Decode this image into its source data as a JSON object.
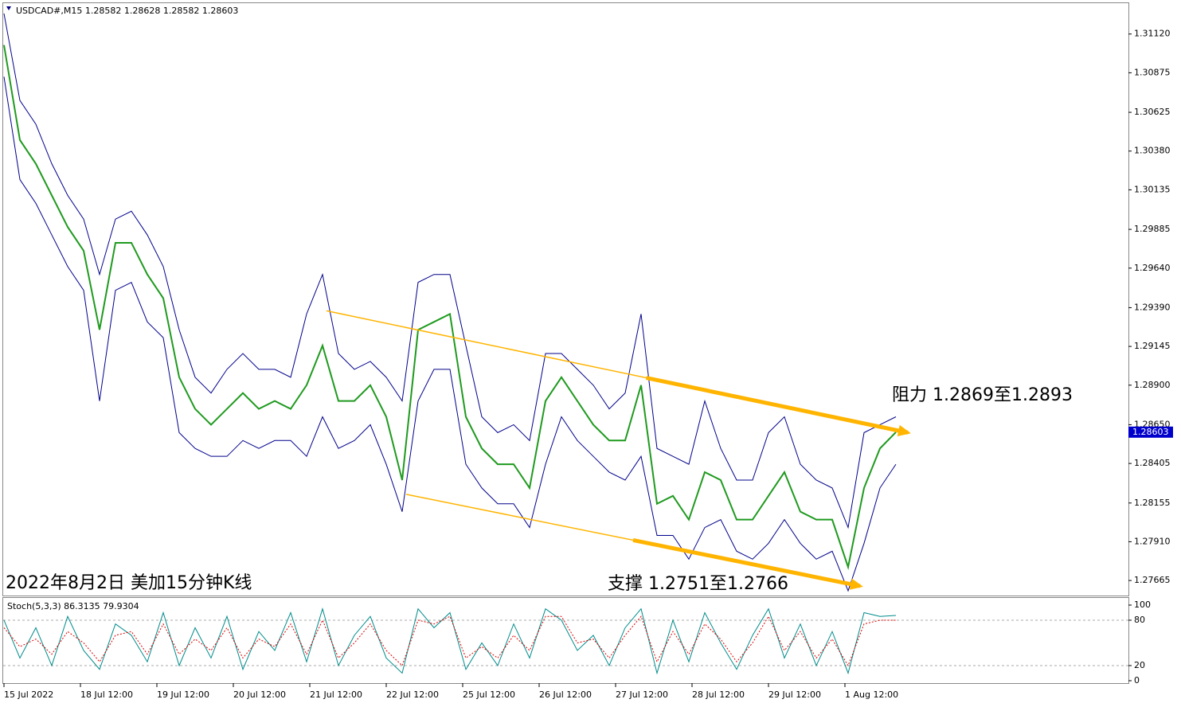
{
  "chart_data": [
    {
      "type": "line",
      "title": "USDCAD#,M15  1.28582 1.28628 1.28582 1.28603",
      "annotations": [
        "阻力 1.2869至1.2893",
        "支撑 1.2751至1.2766",
        "2022年8月2日 美加15分钟K线"
      ],
      "x_labels": [
        "15 Jul 2022",
        "18 Jul 12:00",
        "19 Jul 12:00",
        "20 Jul 12:00",
        "21 Jul 12:00",
        "22 Jul 12:00",
        "25 Jul 12:00",
        "26 Jul 12:00",
        "27 Jul 12:00",
        "28 Jul 12:00",
        "29 Jul 12:00",
        "1 Aug 12:00"
      ],
      "ylim": [
        1.2757,
        1.3132
      ],
      "yticks": [
        {
          "value": 1.3112,
          "label": "1.31120"
        },
        {
          "value": 1.30875,
          "label": "1.30875"
        },
        {
          "value": 1.30625,
          "label": "1.30625"
        },
        {
          "value": 1.3038,
          "label": "1.30380"
        },
        {
          "value": 1.30135,
          "label": "1.30135"
        },
        {
          "value": 1.29885,
          "label": "1.29885"
        },
        {
          "value": 1.2964,
          "label": "1.29640"
        },
        {
          "value": 1.2939,
          "label": "1.29390"
        },
        {
          "value": 1.29145,
          "label": "1.29145"
        },
        {
          "value": 1.289,
          "label": "1.28900"
        },
        {
          "value": 1.2865,
          "label": "1.28650"
        },
        {
          "value": 1.28405,
          "label": "1.28405"
        },
        {
          "value": 1.28155,
          "label": "1.28155"
        },
        {
          "value": 1.2791,
          "label": "1.27910"
        },
        {
          "value": 1.27665,
          "label": "1.27665"
        }
      ],
      "series": [
        {
          "color": "#1f9a1f",
          "values": [
            1.3105,
            1.3045,
            1.303,
            1.301,
            1.299,
            1.2975,
            1.2925,
            1.298,
            1.298,
            1.296,
            1.2945,
            1.2895,
            1.2875,
            1.2865,
            1.2875,
            1.2885,
            1.2875,
            1.288,
            1.2875,
            1.289,
            1.2915,
            1.288,
            1.288,
            1.289,
            1.287,
            1.283,
            1.2925,
            1.293,
            1.2935,
            1.287,
            1.285,
            1.284,
            1.284,
            1.2825,
            1.288,
            1.2895,
            1.288,
            1.2865,
            1.2855,
            1.2855,
            1.289,
            1.2815,
            1.282,
            1.2805,
            1.2835,
            1.283,
            1.2805,
            1.2805,
            1.282,
            1.2835,
            1.281,
            1.2805,
            1.2805,
            1.2775,
            1.2825,
            1.285,
            1.28603
          ]
        },
        {
          "color": "#00008b",
          "values": [
            1.3125,
            1.307,
            1.3055,
            1.303,
            1.301,
            1.2995,
            1.296,
            1.2995,
            1.3,
            1.2985,
            1.2965,
            1.2925,
            1.2895,
            1.2885,
            1.29,
            1.291,
            1.29,
            1.29,
            1.2895,
            1.2935,
            1.296,
            1.291,
            1.29,
            1.2905,
            1.2895,
            1.288,
            1.2955,
            1.296,
            1.296,
            1.2915,
            1.287,
            1.286,
            1.2865,
            1.2855,
            1.291,
            1.291,
            1.29,
            1.289,
            1.2875,
            1.2885,
            1.2935,
            1.285,
            1.2845,
            1.284,
            1.288,
            1.285,
            1.283,
            1.283,
            1.286,
            1.287,
            1.284,
            1.283,
            1.2825,
            1.28,
            1.286,
            1.2865,
            1.287
          ]
        },
        {
          "color": "#00008b",
          "values": [
            1.3085,
            1.302,
            1.3005,
            1.2985,
            1.2965,
            1.295,
            1.288,
            1.295,
            1.2955,
            1.293,
            1.292,
            1.286,
            1.285,
            1.2845,
            1.2845,
            1.2855,
            1.285,
            1.2855,
            1.2855,
            1.2845,
            1.287,
            1.285,
            1.2855,
            1.2865,
            1.284,
            1.281,
            1.288,
            1.29,
            1.29,
            1.284,
            1.2825,
            1.2815,
            1.2815,
            1.28,
            1.284,
            1.287,
            1.2855,
            1.2845,
            1.2835,
            1.283,
            1.2845,
            1.2795,
            1.2795,
            1.278,
            1.28,
            1.2805,
            1.2785,
            1.278,
            1.279,
            1.2805,
            1.279,
            1.278,
            1.2785,
            1.276,
            1.279,
            1.2825,
            1.284
          ]
        }
      ],
      "trendlines": [
        {
          "color": "#ffb400",
          "start": [
            20.25,
            1.2937
          ],
          "end": [
            56.75,
            1.286
          ]
        },
        {
          "color": "#ffb400",
          "start": [
            25.25,
            1.2821
          ],
          "end": [
            53.75,
            1.2763
          ]
        }
      ]
    },
    {
      "type": "line",
      "title": "Stoch(5,3,3) 86.3135 79.9304",
      "ylim": [
        -3.2,
        108.4
      ],
      "yticks": [
        100,
        80,
        20,
        0
      ],
      "levels": [
        80,
        20
      ],
      "series": [
        {
          "color": "#008b8b",
          "values": [
            80,
            30,
            70,
            20,
            85,
            40,
            15,
            75,
            60,
            25,
            90,
            20,
            70,
            30,
            85,
            15,
            65,
            40,
            90,
            25,
            95,
            20,
            60,
            85,
            30,
            10,
            95,
            70,
            90,
            15,
            50,
            20,
            75,
            30,
            95,
            80,
            40,
            60,
            20,
            70,
            95,
            10,
            80,
            25,
            90,
            50,
            15,
            60,
            95,
            30,
            75,
            20,
            65,
            10,
            90,
            85,
            86.3135
          ]
        },
        {
          "color": "#e00000",
          "dashed": true,
          "values": [
            70,
            45,
            55,
            35,
            65,
            50,
            25,
            60,
            65,
            35,
            75,
            35,
            55,
            40,
            70,
            30,
            55,
            45,
            75,
            35,
            80,
            30,
            50,
            75,
            40,
            20,
            80,
            75,
            85,
            30,
            45,
            30,
            60,
            40,
            85,
            85,
            50,
            55,
            30,
            60,
            85,
            25,
            65,
            35,
            75,
            55,
            25,
            50,
            85,
            40,
            65,
            30,
            55,
            20,
            75,
            80,
            79.9304
          ]
        }
      ]
    }
  ]
}
